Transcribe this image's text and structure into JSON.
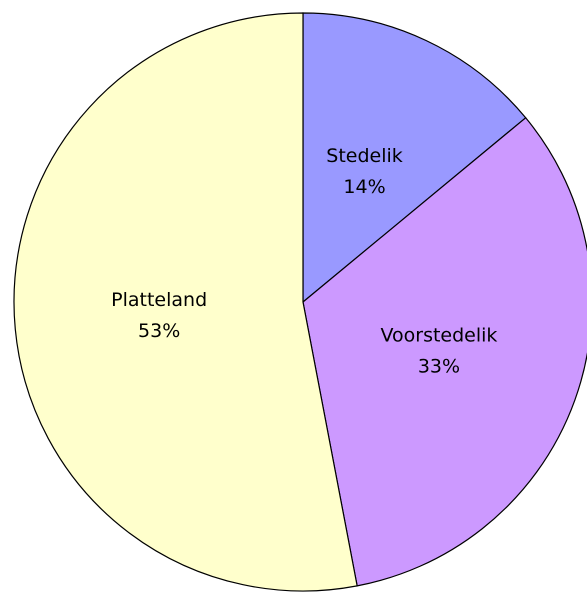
{
  "chart_data": {
    "type": "pie",
    "categories": [
      "Stedelik",
      "Voorstedelik",
      "Platteland"
    ],
    "values": [
      14,
      33,
      53
    ],
    "value_labels": [
      "14%",
      "33%",
      "53%"
    ],
    "colors": [
      "#9999ff",
      "#cc99ff",
      "#ffffcc"
    ]
  }
}
